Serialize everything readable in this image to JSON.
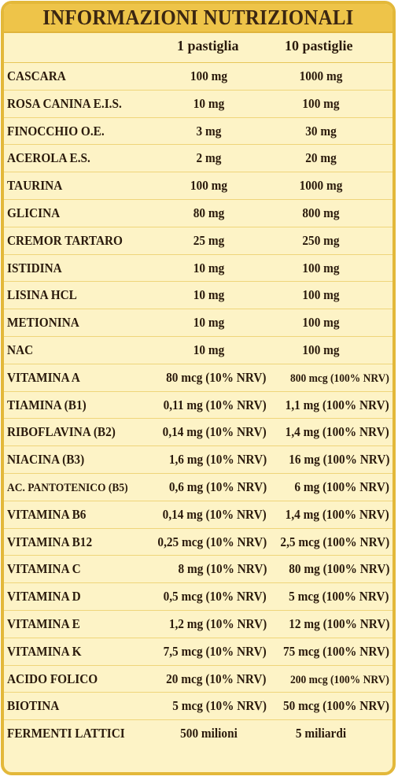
{
  "title": "INFORMAZIONI NUTRIZIONALI",
  "columns": {
    "one": "1 pastiglia",
    "ten": "10 pastiglie"
  },
  "rows": [
    {
      "name": "CASCARA",
      "one": "100 mg",
      "ten": "1000 mg"
    },
    {
      "name": "ROSA CANINA E.I.S.",
      "one": "10 mg",
      "ten": "100 mg"
    },
    {
      "name": "FINOCCHIO O.E.",
      "one": "3 mg",
      "ten": "30 mg"
    },
    {
      "name": "ACEROLA E.S.",
      "one": "2 mg",
      "ten": "20 mg"
    },
    {
      "name": "TAURINA",
      "one": "100 mg",
      "ten": "1000 mg"
    },
    {
      "name": "GLICINA",
      "one": "80 mg",
      "ten": "800 mg"
    },
    {
      "name": "CREMOR TARTARO",
      "one": "25 mg",
      "ten": "250 mg"
    },
    {
      "name": "ISTIDINA",
      "one": "10 mg",
      "ten": "100 mg"
    },
    {
      "name": "LISINA HCL",
      "one": "10 mg",
      "ten": "100 mg"
    },
    {
      "name": "METIONINA",
      "one": "10 mg",
      "ten": "100 mg"
    },
    {
      "name": "NAC",
      "one": "10 mg",
      "ten": "100 mg"
    },
    {
      "name": "VITAMINA A",
      "one": "80 mcg (10% NRV)",
      "ten": "800 mcg (100% NRV)"
    },
    {
      "name": "TIAMINA (B1)",
      "one": "0,11 mg (10% NRV)",
      "ten": "1,1 mg (100% NRV)"
    },
    {
      "name": "RIBOFLAVINA (B2)",
      "one": "0,14 mg (10% NRV)",
      "ten": "1,4 mg (100% NRV)"
    },
    {
      "name": "NIACINA (B3)",
      "one": "1,6 mg (10% NRV)",
      "ten": "16 mg (100% NRV)"
    },
    {
      "name": "AC. PANTOTENICO (B5)",
      "one": "0,6 mg (10% NRV)",
      "ten": "6 mg (100% NRV)"
    },
    {
      "name": "VITAMINA B6",
      "one": "0,14 mg (10% NRV)",
      "ten": "1,4 mg (100% NRV)"
    },
    {
      "name": "VITAMINA B12",
      "one": "0,25 mcg (10% NRV)",
      "ten": "2,5 mcg (100% NRV)"
    },
    {
      "name": "VITAMINA C",
      "one": "8 mg (10% NRV)",
      "ten": "80 mg (100% NRV)"
    },
    {
      "name": "VITAMINA D",
      "one": "0,5 mcg (10% NRV)",
      "ten": "5 mcg (100% NRV)"
    },
    {
      "name": "VITAMINA E",
      "one": "1,2 mg (10% NRV)",
      "ten": "12 mg (100% NRV)"
    },
    {
      "name": "VITAMINA K",
      "one": "7,5 mcg (10% NRV)",
      "ten": "75 mcg (100% NRV)"
    },
    {
      "name": "ACIDO FOLICO",
      "one": "20 mcg (10% NRV)",
      "ten": "200 mcg (100% NRV)"
    },
    {
      "name": "BIOTINA",
      "one": "5 mcg (10% NRV)",
      "ten": "50 mcg (100% NRV)"
    },
    {
      "name": "FERMENTI LATTICI",
      "one": "500 milioni",
      "ten": "5 miliardi"
    }
  ]
}
